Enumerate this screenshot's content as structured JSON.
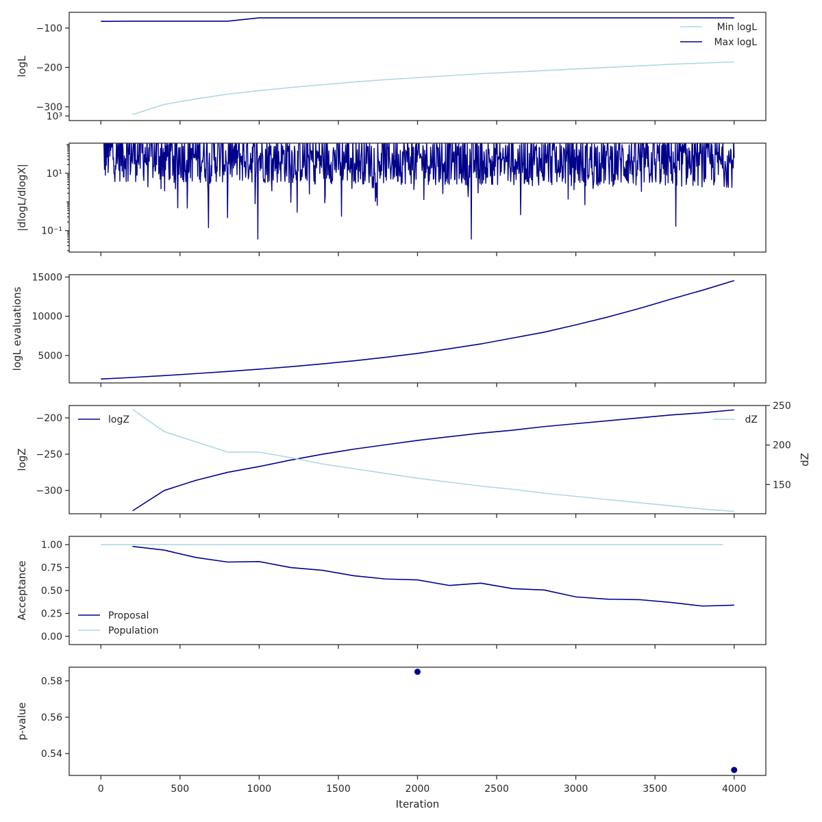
{
  "colors": {
    "dark": "#00008b",
    "light": "#add8e6",
    "axes": "#262626"
  },
  "chart_data": [
    {
      "type": "line",
      "ylabel": "logL",
      "ylim": [
        -335,
        -60
      ],
      "yticks": [
        -300,
        -200,
        -100
      ],
      "ytick_labels": [
        "−300",
        "−200",
        "−100"
      ],
      "legend": {
        "placement": "top-right"
      },
      "series": [
        {
          "name": "Min logL",
          "color": "#add8e6",
          "x": [
            200,
            400,
            600,
            800,
            1000,
            1200,
            1400,
            1600,
            1800,
            2000,
            2200,
            2400,
            2600,
            2800,
            3000,
            3200,
            3400,
            3600,
            3800,
            4000
          ],
          "y": [
            -320,
            -294,
            -280,
            -268,
            -259,
            -251,
            -244,
            -237,
            -231,
            -226,
            -221,
            -216,
            -212,
            -208,
            -204,
            -200,
            -196,
            -192,
            -189,
            -186
          ]
        },
        {
          "name": "Max logL",
          "color": "#00008b",
          "x": [
            0,
            200,
            400,
            600,
            800,
            1000,
            1200,
            1600,
            2000,
            2400,
            2800,
            3200,
            3600,
            4000
          ],
          "y": [
            -83,
            -82.5,
            -82.5,
            -82.5,
            -82.5,
            -74,
            -74,
            -74,
            -74,
            -74,
            -74,
            -74,
            -74,
            -74
          ]
        }
      ]
    },
    {
      "type": "line",
      "ylabel": "|dlogL/dlogX|",
      "yscale": "log",
      "ylim_log10": [
        -1.75,
        2.05
      ],
      "yticks_log10": [
        -1,
        1,
        3
      ],
      "ytick_labels": [
        "10⁻¹",
        "10¹",
        "10³"
      ],
      "series": [
        {
          "name": "",
          "color": "#00008b",
          "noisy": true,
          "x_range": [
            0,
            4000
          ],
          "typical_log10_range": [
            0.5,
            2.3
          ],
          "max_log10": 3.9,
          "dips": [
            [
              990,
              -1.3
            ],
            [
              2340,
              -1.3
            ],
            [
              680,
              -0.9
            ],
            [
              800,
              -0.55
            ],
            [
              1520,
              -0.5
            ],
            [
              2650,
              -0.45
            ],
            [
              3630,
              -0.85
            ]
          ]
        }
      ]
    },
    {
      "type": "line",
      "ylabel": "logL evaluations",
      "ylim": [
        1500,
        15300
      ],
      "yticks": [
        5000,
        10000,
        15000
      ],
      "ytick_labels": [
        "5000",
        "10000",
        "15000"
      ],
      "series": [
        {
          "name": "",
          "color": "#00008b",
          "x": [
            0,
            200,
            400,
            600,
            800,
            1000,
            1200,
            1400,
            1600,
            1800,
            2000,
            2200,
            2400,
            2600,
            2800,
            3000,
            3200,
            3400,
            3600,
            3800,
            4000
          ],
          "y": [
            2000,
            2200,
            2430,
            2690,
            2960,
            3250,
            3570,
            3930,
            4320,
            4770,
            5260,
            5850,
            6470,
            7220,
            7970,
            8900,
            9890,
            10990,
            12180,
            13320,
            14550
          ]
        }
      ]
    },
    {
      "type": "line",
      "ylabel": "logZ",
      "ylabel_right": "dZ",
      "ylim": [
        -332,
        -183
      ],
      "yticks": [
        -300,
        -250,
        -200
      ],
      "ytick_labels": [
        "−300",
        "−250",
        "−200"
      ],
      "ylim_right": [
        113,
        250
      ],
      "yticks_right": [
        150,
        200,
        250
      ],
      "ytick_labels_right": [
        "150",
        "200",
        "250"
      ],
      "series": [
        {
          "name": "logZ",
          "color": "#00008b",
          "axis": "left",
          "legend": "top-left",
          "x": [
            200,
            400,
            600,
            800,
            1000,
            1200,
            1400,
            1600,
            1800,
            2000,
            2200,
            2400,
            2600,
            2800,
            3000,
            3200,
            3400,
            3600,
            3800,
            4000
          ],
          "y": [
            -328,
            -300,
            -286,
            -275,
            -267,
            -258,
            -250,
            -243,
            -237,
            -231,
            -226,
            -221,
            -217,
            -212,
            -208,
            -204,
            -200,
            -196,
            -193,
            -189
          ]
        },
        {
          "name": "dZ",
          "color": "#add8e6",
          "axis": "right",
          "legend": "top-right",
          "x": [
            200,
            400,
            600,
            800,
            1000,
            1200,
            1400,
            1600,
            1800,
            2000,
            2200,
            2400,
            2600,
            2800,
            3000,
            3200,
            3400,
            3600,
            3800,
            4000
          ],
          "y": [
            245,
            217,
            204,
            191,
            191,
            184,
            176,
            170,
            164,
            158,
            153,
            148,
            144,
            139,
            135,
            131,
            127,
            123,
            119,
            116
          ]
        }
      ]
    },
    {
      "type": "line",
      "ylabel": "Acceptance",
      "ylim": [
        -0.09,
        1.09
      ],
      "yticks": [
        0,
        0.25,
        0.5,
        0.75,
        1
      ],
      "ytick_labels": [
        "0.00",
        "0.25",
        "0.50",
        "0.75",
        "1.00"
      ],
      "legend": {
        "placement": "bottom-left"
      },
      "series": [
        {
          "name": "Proposal",
          "color": "#00008b",
          "x": [
            200,
            400,
            600,
            800,
            1000,
            1200,
            1400,
            1600,
            1800,
            2000,
            2200,
            2400,
            2600,
            2800,
            3000,
            3200,
            3400,
            3600,
            3800,
            4000
          ],
          "y": [
            0.98,
            0.94,
            0.86,
            0.81,
            0.815,
            0.75,
            0.72,
            0.66,
            0.625,
            0.615,
            0.555,
            0.58,
            0.52,
            0.505,
            0.43,
            0.405,
            0.4,
            0.37,
            0.33,
            0.34
          ]
        },
        {
          "name": "Population",
          "color": "#add8e6",
          "x": [
            0,
            3930
          ],
          "y": [
            1.0,
            1.0
          ]
        }
      ]
    },
    {
      "type": "scatter",
      "ylabel": "p-value",
      "xlabel": "Iteration",
      "xlim": [
        -200,
        4200
      ],
      "xticks": [
        0,
        500,
        1000,
        1500,
        2000,
        2500,
        3000,
        3500,
        4000
      ],
      "ylim": [
        0.528,
        0.5875
      ],
      "yticks": [
        0.54,
        0.56,
        0.58
      ],
      "ytick_labels": [
        "0.54",
        "0.56",
        "0.58"
      ],
      "series": [
        {
          "name": "",
          "color": "#00008b",
          "x": [
            2000,
            4000
          ],
          "y": [
            0.585,
            0.531
          ]
        }
      ]
    }
  ]
}
